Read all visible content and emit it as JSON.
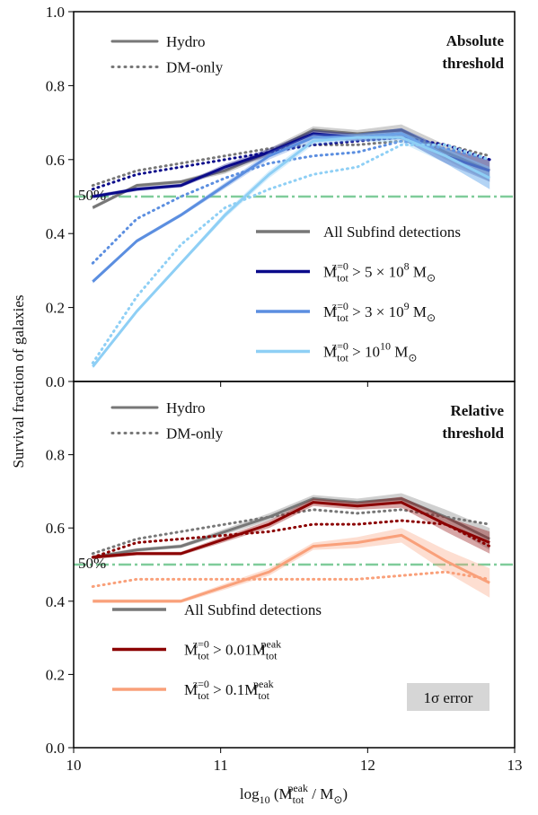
{
  "chart_data": [
    {
      "type": "line",
      "ylabel": "Survival fraction of galaxies",
      "annotation": [
        "Absolute",
        "threshold"
      ],
      "style_legend": [
        "Hydro",
        "DM-only"
      ],
      "threshold_line": {
        "value": 0.5,
        "label": "50%",
        "color": "#7fcc9a"
      },
      "x": [
        10.13,
        10.43,
        10.73,
        11.03,
        11.33,
        11.63,
        11.93,
        12.23,
        12.53,
        12.83
      ],
      "xlim": [
        10,
        13
      ],
      "xticks": [
        10,
        11,
        12,
        13
      ],
      "ylim": [
        0,
        1
      ],
      "yticks": [
        {
          "value": 0,
          "label": "0.0"
        },
        0.2,
        0.4,
        0.6,
        0.8,
        {
          "value": 1,
          "label": "1.0"
        }
      ],
      "series": [
        {
          "name": "All Subfind detections",
          "color": "#777777",
          "values": [
            0.47,
            0.53,
            0.54,
            0.57,
            0.62,
            0.68,
            0.67,
            0.68,
            0.62,
            0.57
          ],
          "errors": [
            0.005,
            0.005,
            0.005,
            0.008,
            0.01,
            0.01,
            0.01,
            0.015,
            0.02,
            0.03
          ],
          "dm_values": [
            0.53,
            0.57,
            0.59,
            0.61,
            0.63,
            0.64,
            0.64,
            0.65,
            0.64,
            0.61
          ]
        },
        {
          "name": "M_{tot}^{z=0}  > 5 × 10^{8} M_{⊙}",
          "color": "#0a0a8a",
          "values": [
            0.5,
            0.52,
            0.53,
            0.58,
            0.62,
            0.67,
            0.66,
            0.67,
            0.61,
            0.57
          ],
          "errors": [
            0.005,
            0.005,
            0.005,
            0.008,
            0.01,
            0.01,
            0.01,
            0.015,
            0.02,
            0.03
          ],
          "dm_values": [
            0.52,
            0.56,
            0.58,
            0.6,
            0.62,
            0.64,
            0.65,
            0.66,
            0.64,
            0.6
          ]
        },
        {
          "name": "M_{tot}^{z=0}  > 3 × 10^{9} M_{⊙}",
          "color": "#5b8ee0",
          "values": [
            0.27,
            0.38,
            0.45,
            0.53,
            0.61,
            0.66,
            0.66,
            0.67,
            0.61,
            0.55
          ],
          "errors": [
            0.005,
            0.005,
            0.005,
            0.008,
            0.01,
            0.01,
            0.01,
            0.015,
            0.02,
            0.03
          ],
          "dm_values": [
            0.32,
            0.44,
            0.5,
            0.55,
            0.59,
            0.61,
            0.62,
            0.65,
            0.63,
            0.6
          ]
        },
        {
          "name": "M_{tot}^{z=0}  > 10^{10} M_{⊙}",
          "color": "#8ecff5",
          "values": [
            0.04,
            0.19,
            0.32,
            0.45,
            0.56,
            0.65,
            0.66,
            0.66,
            0.61,
            0.55
          ],
          "errors": [
            0.005,
            0.005,
            0.005,
            0.008,
            0.01,
            0.01,
            0.01,
            0.015,
            0.02,
            0.03
          ],
          "dm_values": [
            0.05,
            0.23,
            0.37,
            0.47,
            0.52,
            0.56,
            0.58,
            0.64,
            0.64,
            0.6
          ]
        }
      ]
    },
    {
      "type": "line",
      "xlabel": "log_{10} (M_{tot}^{peak} / M_{⊙})",
      "annotation": [
        "Relative",
        "threshold"
      ],
      "style_legend": [
        "Hydro",
        "DM-only"
      ],
      "threshold_line": {
        "value": 0.5,
        "label": "50%",
        "color": "#7fcc9a"
      },
      "error_label": "1σ error",
      "x": [
        10.13,
        10.43,
        10.73,
        11.03,
        11.33,
        11.63,
        11.93,
        12.23,
        12.53,
        12.83
      ],
      "xlim": [
        10,
        13
      ],
      "xticks": [
        10,
        11,
        12,
        13
      ],
      "ylim": [
        0,
        1
      ],
      "yticks": [
        {
          "value": 0,
          "label": "0.0"
        },
        0.2,
        0.4,
        0.6,
        0.8
      ],
      "series": [
        {
          "name": "All Subfind detections",
          "color": "#777777",
          "values": [
            0.52,
            0.54,
            0.55,
            0.59,
            0.63,
            0.68,
            0.67,
            0.68,
            0.63,
            0.57
          ],
          "errors": [
            0.005,
            0.005,
            0.005,
            0.008,
            0.01,
            0.01,
            0.01,
            0.015,
            0.02,
            0.03
          ],
          "dm_values": [
            0.53,
            0.57,
            0.59,
            0.61,
            0.63,
            0.65,
            0.64,
            0.65,
            0.63,
            0.61
          ]
        },
        {
          "name": "M_{tot}^{z=0}  > 0.01M_{tot}^{peak}",
          "color": "#8b0000",
          "values": [
            0.52,
            0.53,
            0.53,
            0.57,
            0.61,
            0.67,
            0.66,
            0.67,
            0.61,
            0.56
          ],
          "errors": [
            0.005,
            0.005,
            0.005,
            0.008,
            0.01,
            0.01,
            0.01,
            0.015,
            0.02,
            0.03
          ],
          "dm_values": [
            0.52,
            0.56,
            0.57,
            0.58,
            0.59,
            0.61,
            0.61,
            0.62,
            0.61,
            0.55
          ]
        },
        {
          "name": "M_{tot}^{z=0}  > 0.1M_{tot}^{peak}",
          "color": "#f9a07a",
          "values": [
            0.4,
            0.4,
            0.4,
            0.44,
            0.48,
            0.55,
            0.56,
            0.58,
            0.51,
            0.45
          ],
          "errors": [
            0.005,
            0.005,
            0.005,
            0.008,
            0.01,
            0.01,
            0.015,
            0.02,
            0.03,
            0.04
          ],
          "dm_values": [
            0.44,
            0.46,
            0.46,
            0.46,
            0.46,
            0.46,
            0.46,
            0.47,
            0.48,
            0.46
          ]
        }
      ]
    }
  ]
}
